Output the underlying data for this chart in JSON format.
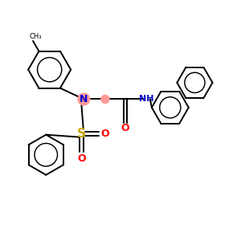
{
  "bg_color": "#ffffff",
  "atom_color_N": "#0000cc",
  "atom_color_O": "#ff0000",
  "atom_color_S": "#ccaa00",
  "atom_color_C": "#000000",
  "atom_color_H": "#0000cc",
  "highlight_color": "#ff9999",
  "bond_color": "#000000",
  "bond_width": 1.4,
  "figsize": [
    3.0,
    3.0
  ],
  "dpi": 100,
  "xlim": [
    0,
    10
  ],
  "ylim": [
    0,
    10
  ]
}
